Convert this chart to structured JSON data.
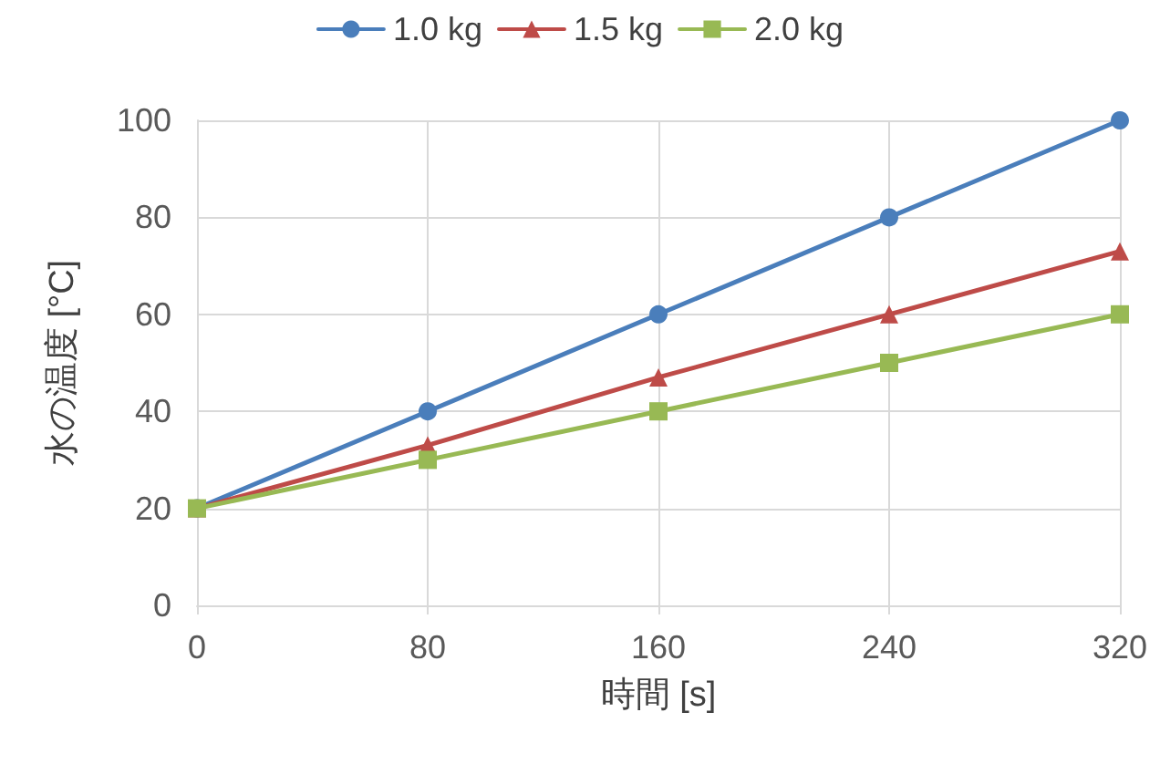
{
  "chart_data": {
    "type": "line",
    "xlabel": "時間 [s]",
    "ylabel": "水の温度 [°C]",
    "x": [
      0,
      80,
      160,
      240,
      320
    ],
    "series": [
      {
        "name": "1.0 kg",
        "color": "#4a7ebb",
        "marker": "circle",
        "values": [
          20,
          40,
          60,
          80,
          100
        ]
      },
      {
        "name": "1.5 kg",
        "color": "#be4b48",
        "marker": "triangle",
        "values": [
          20,
          33,
          47,
          60,
          73
        ]
      },
      {
        "name": "2.0 kg",
        "color": "#98b954",
        "marker": "square",
        "values": [
          20,
          30,
          40,
          50,
          60
        ]
      }
    ],
    "xlim": [
      0,
      320
    ],
    "xticks": [
      0,
      80,
      160,
      240,
      320
    ],
    "ylim": [
      0,
      100
    ],
    "yticks": [
      0,
      20,
      40,
      60,
      80,
      100
    ],
    "grid": true,
    "legend": "top",
    "line_style": "solid"
  }
}
